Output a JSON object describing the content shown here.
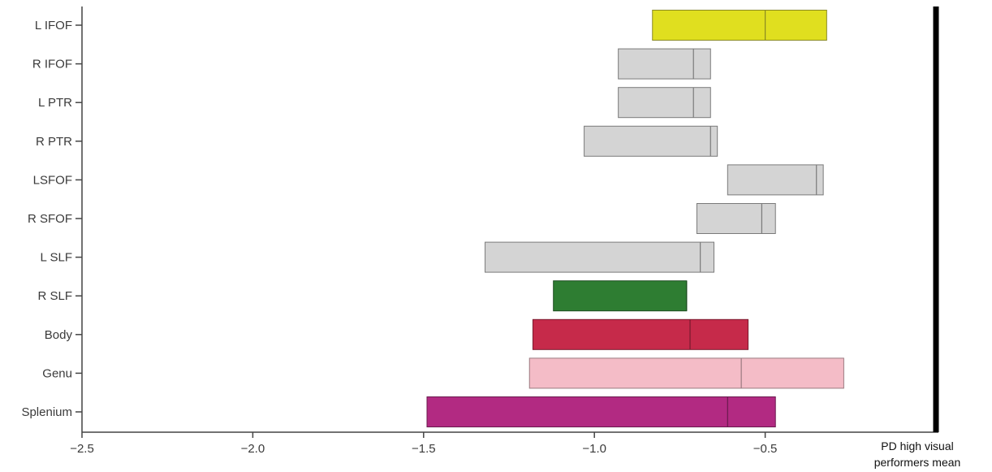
{
  "chart_data": {
    "type": "bar",
    "orientation": "horizontal",
    "title": "",
    "xlabel": "",
    "ylabel": "",
    "xlim": [
      -2.5,
      0
    ],
    "grid": false,
    "legend": "none",
    "x_ticks": [
      -2.5,
      -2.0,
      -1.5,
      -1.0,
      -0.5
    ],
    "x_tick_labels": [
      "−2.5",
      "−2.0",
      "−1.5",
      "−1.0",
      "−0.5"
    ],
    "categories": [
      "L IFOF",
      "R IFOF",
      "L PTR",
      "R PTR",
      "LSFOF",
      "R SFOF",
      "L SLF",
      "R SLF",
      "Body",
      "Genu",
      "Splenium"
    ],
    "bars": [
      {
        "label": "L IFOF",
        "low": -0.83,
        "high": -0.32,
        "mid": -0.5,
        "color": "#e0df1f",
        "edge": "#8a8a22"
      },
      {
        "label": "R IFOF",
        "low": -0.93,
        "high": -0.66,
        "mid": -0.71,
        "color": "#d4d4d4",
        "edge": "#7a7a7a"
      },
      {
        "label": "L PTR",
        "low": -0.93,
        "high": -0.66,
        "mid": -0.71,
        "color": "#d4d4d4",
        "edge": "#7a7a7a"
      },
      {
        "label": "R PTR",
        "low": -1.03,
        "high": -0.64,
        "mid": -0.66,
        "color": "#d4d4d4",
        "edge": "#7a7a7a"
      },
      {
        "label": "LSFOF",
        "low": -0.61,
        "high": -0.33,
        "mid": -0.35,
        "color": "#d4d4d4",
        "edge": "#7a7a7a"
      },
      {
        "label": "R SFOF",
        "low": -0.7,
        "high": -0.47,
        "mid": -0.51,
        "color": "#d4d4d4",
        "edge": "#7a7a7a"
      },
      {
        "label": "L SLF",
        "low": -1.32,
        "high": -0.65,
        "mid": -0.69,
        "color": "#d4d4d4",
        "edge": "#7a7a7a"
      },
      {
        "label": "R SLF",
        "low": -1.12,
        "high": -0.73,
        "mid": -0.73,
        "color": "#2e7d32",
        "edge": "#1d4d20"
      },
      {
        "label": "Body",
        "low": -1.18,
        "high": -0.55,
        "mid": -0.72,
        "color": "#c62a4a",
        "edge": "#7a1a2e"
      },
      {
        "label": "Genu",
        "low": -1.19,
        "high": -0.27,
        "mid": -0.57,
        "color": "#f4bcc7",
        "edge": "#9a7a80"
      },
      {
        "label": "Splenium",
        "low": -1.49,
        "high": -0.47,
        "mid": -0.61,
        "color": "#b22a82",
        "edge": "#6a1a4e"
      }
    ],
    "reference_line": {
      "x": 0,
      "label_lines": [
        "PD high visual",
        "performers mean"
      ],
      "color": "#000000"
    }
  }
}
